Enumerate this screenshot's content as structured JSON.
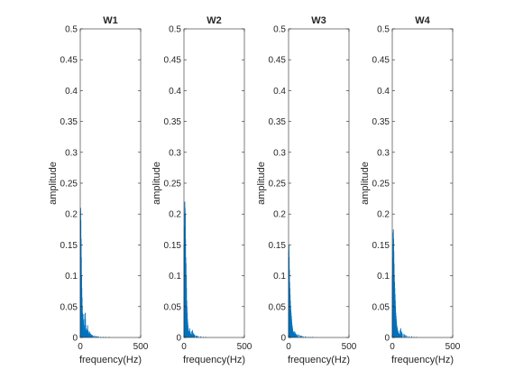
{
  "chart_data": [
    {
      "type": "bar",
      "title": "W1",
      "xlabel": "frequency(Hz)",
      "ylabel": "amplitude",
      "xlim": [
        0,
        500
      ],
      "ylim": [
        0,
        0.5
      ],
      "xticks": [
        "0",
        "500"
      ],
      "yticks": [
        "0",
        "0.05",
        "0.1",
        "0.15",
        "0.2",
        "0.25",
        "0.3",
        "0.35",
        "0.4",
        "0.45",
        "0.5"
      ],
      "grid": false,
      "color": "#0072BD",
      "x": [
        1,
        3,
        5,
        7,
        9,
        11,
        13,
        15,
        17,
        19,
        21,
        23,
        25,
        27,
        29,
        31,
        33,
        35,
        37,
        39,
        41,
        43,
        45,
        47,
        49,
        52,
        55,
        58,
        61,
        64,
        67,
        70,
        75,
        80,
        85,
        90,
        95,
        100,
        110,
        120,
        130,
        140,
        150,
        170,
        190,
        210,
        240
      ],
      "values": [
        0.205,
        0.21,
        0.19,
        0.16,
        0.13,
        0.1,
        0.08,
        0.065,
        0.05,
        0.04,
        0.03,
        0.025,
        0.02,
        0.028,
        0.038,
        0.03,
        0.02,
        0.015,
        0.012,
        0.01,
        0.04,
        0.03,
        0.02,
        0.015,
        0.01,
        0.012,
        0.008,
        0.015,
        0.02,
        0.012,
        0.008,
        0.006,
        0.01,
        0.008,
        0.006,
        0.005,
        0.004,
        0.004,
        0.003,
        0.003,
        0.002,
        0.002,
        0.002,
        0.001,
        0.001,
        0.001,
        0.001
      ]
    },
    {
      "type": "bar",
      "title": "W2",
      "xlabel": "frequency(Hz)",
      "ylabel": "amplitude",
      "xlim": [
        0,
        500
      ],
      "ylim": [
        0,
        0.5
      ],
      "xticks": [
        "0",
        "500"
      ],
      "yticks": [
        "0",
        "0.05",
        "0.1",
        "0.15",
        "0.2",
        "0.25",
        "0.3",
        "0.35",
        "0.4",
        "0.45",
        "0.5"
      ],
      "grid": false,
      "color": "#0072BD",
      "x": [
        1,
        3,
        5,
        7,
        9,
        11,
        13,
        15,
        17,
        19,
        21,
        23,
        25,
        27,
        29,
        31,
        33,
        35,
        37,
        39,
        41,
        44,
        47,
        50,
        53,
        56,
        60,
        65,
        70,
        75,
        80,
        85,
        90,
        100,
        110,
        120,
        140,
        160,
        180
      ],
      "values": [
        0.15,
        0.18,
        0.2,
        0.22,
        0.21,
        0.2,
        0.16,
        0.13,
        0.12,
        0.1,
        0.08,
        0.06,
        0.05,
        0.04,
        0.03,
        0.025,
        0.02,
        0.015,
        0.012,
        0.01,
        0.01,
        0.008,
        0.015,
        0.01,
        0.008,
        0.006,
        0.005,
        0.01,
        0.012,
        0.008,
        0.006,
        0.005,
        0.004,
        0.003,
        0.003,
        0.002,
        0.002,
        0.001,
        0.001
      ]
    },
    {
      "type": "bar",
      "title": "W3",
      "xlabel": "frequency(Hz)",
      "ylabel": "amplitude",
      "xlim": [
        0,
        500
      ],
      "ylim": [
        0,
        0.5
      ],
      "xticks": [
        "0",
        "500"
      ],
      "yticks": [
        "0",
        "0.05",
        "0.1",
        "0.15",
        "0.2",
        "0.25",
        "0.3",
        "0.35",
        "0.4",
        "0.45",
        "0.5"
      ],
      "grid": false,
      "color": "#0072BD",
      "x": [
        1,
        3,
        5,
        7,
        9,
        11,
        13,
        15,
        17,
        19,
        21,
        23,
        25,
        27,
        29,
        31,
        33,
        35,
        37,
        40,
        43,
        46,
        50,
        55,
        60,
        65,
        70,
        80,
        90,
        100,
        110,
        120,
        140,
        160,
        180,
        200
      ],
      "values": [
        0.14,
        0.15,
        0.13,
        0.11,
        0.09,
        0.08,
        0.07,
        0.06,
        0.05,
        0.045,
        0.04,
        0.035,
        0.03,
        0.025,
        0.02,
        0.018,
        0.015,
        0.012,
        0.01,
        0.009,
        0.008,
        0.006,
        0.01,
        0.008,
        0.006,
        0.005,
        0.004,
        0.005,
        0.004,
        0.003,
        0.003,
        0.002,
        0.002,
        0.001,
        0.001,
        0.001
      ]
    },
    {
      "type": "bar",
      "title": "W4",
      "xlabel": "frequency(Hz)",
      "ylabel": "amplitude",
      "xlim": [
        0,
        500
      ],
      "ylim": [
        0,
        0.5
      ],
      "xticks": [
        "0",
        "500"
      ],
      "yticks": [
        "0",
        "0.05",
        "0.1",
        "0.15",
        "0.2",
        "0.25",
        "0.3",
        "0.35",
        "0.4",
        "0.45",
        "0.5"
      ],
      "grid": false,
      "color": "#0072BD",
      "x": [
        1,
        3,
        5,
        7,
        9,
        11,
        13,
        15,
        17,
        19,
        21,
        23,
        25,
        27,
        29,
        31,
        33,
        35,
        37,
        39,
        42,
        45,
        48,
        51,
        54,
        57,
        60,
        65,
        70,
        75,
        80,
        90,
        100,
        110,
        120,
        140,
        160,
        180,
        200
      ],
      "values": [
        0.1,
        0.13,
        0.15,
        0.17,
        0.175,
        0.16,
        0.14,
        0.12,
        0.1,
        0.09,
        0.08,
        0.07,
        0.06,
        0.05,
        0.04,
        0.035,
        0.03,
        0.025,
        0.02,
        0.018,
        0.015,
        0.012,
        0.01,
        0.008,
        0.007,
        0.006,
        0.005,
        0.012,
        0.015,
        0.01,
        0.008,
        0.006,
        0.005,
        0.004,
        0.003,
        0.002,
        0.002,
        0.001,
        0.001
      ]
    }
  ]
}
